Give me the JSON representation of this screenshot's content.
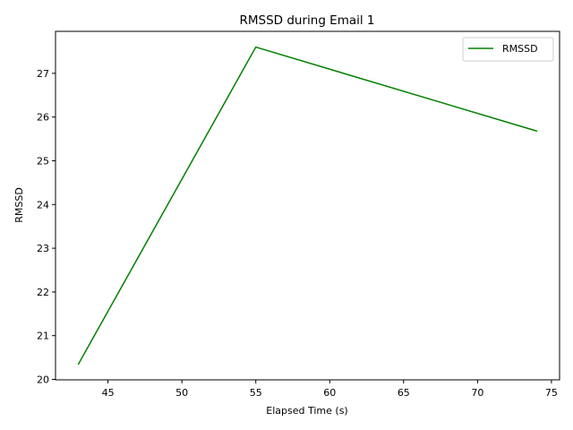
{
  "chart_data": {
    "type": "line",
    "title": "RMSSD during Email 1",
    "xlabel": "Elapsed Time (s)",
    "ylabel": "RMSSD",
    "xlim": [
      41.45,
      75.55
    ],
    "ylim": [
      19.99,
      27.96
    ],
    "xticks": [
      45,
      50,
      55,
      60,
      65,
      70,
      75
    ],
    "yticks": [
      20,
      21,
      22,
      23,
      24,
      25,
      26,
      27
    ],
    "grid": false,
    "legend_position": "top-right",
    "series": [
      {
        "name": "RMSSD",
        "color": "#008000",
        "x": [
          43,
          55,
          74
        ],
        "y": [
          20.35,
          27.6,
          25.68
        ]
      }
    ]
  }
}
